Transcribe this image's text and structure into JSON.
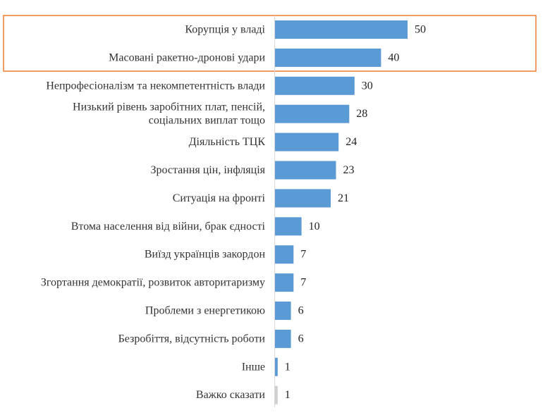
{
  "colors": {
    "bar": "#5b9bd5",
    "bar_muted": "#d0d0d0",
    "label_muted": "#9a9a9a",
    "highlight_border": "#ed7d31"
  },
  "chart_data": {
    "type": "bar",
    "orientation": "horizontal",
    "categories": [
      [
        "Корупція у владі"
      ],
      [
        "Масовані ракетно-дронові удари"
      ],
      [
        "Непрофесіоналізм та некомпетентність влади"
      ],
      [
        "Низький рівень заробітних плат, пенсій,",
        "соціальних виплат тощо"
      ],
      [
        "Діяльність ТЦК"
      ],
      [
        "Зростання цін, інфляція"
      ],
      [
        "Ситуація на фронті"
      ],
      [
        "Втома населення від війни, брак єдності"
      ],
      [
        "Виїзд українців закордон"
      ],
      [
        "Згортання демократії, розвиток авторитаризму"
      ],
      [
        "Проблеми з енергетикою"
      ],
      [
        "Безробіття, відсутність роботи"
      ],
      [
        "Інше"
      ],
      [
        "Важко сказати"
      ]
    ],
    "values": [
      50,
      40,
      30,
      28,
      24,
      23,
      21,
      10,
      7,
      7,
      6,
      6,
      1,
      1
    ],
    "muted_indices": [
      13
    ],
    "highlighted_indices": [
      0,
      1
    ],
    "xlim": [
      0,
      50
    ],
    "title": "",
    "xlabel": "",
    "ylabel": "",
    "grid": false,
    "legend": "none"
  }
}
